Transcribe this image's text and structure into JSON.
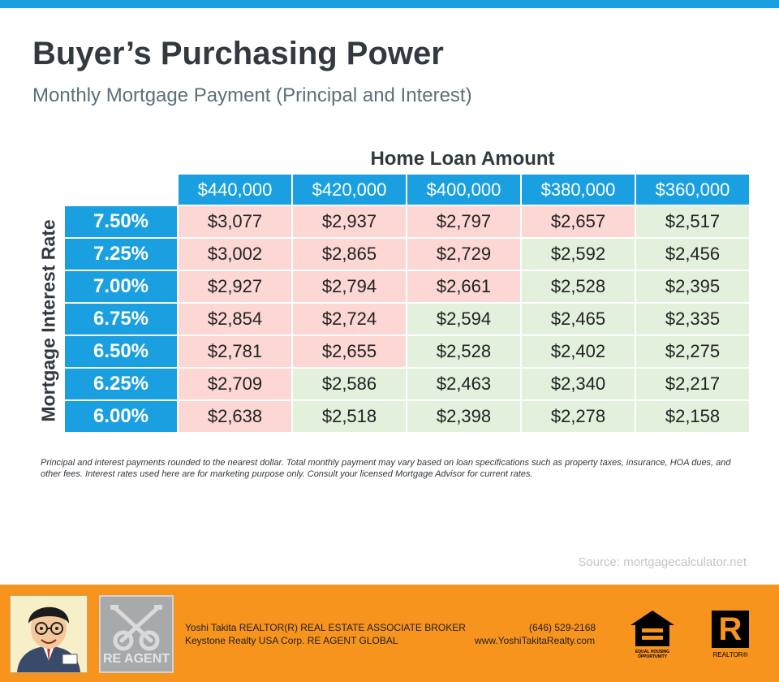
{
  "header": {
    "title": "Buyer’s Purchasing Power",
    "subtitle": "Monthly Mortgage Payment (Principal and Interest)"
  },
  "table": {
    "column_group_label": "Home Loan Amount",
    "row_group_label": "Mortgage  Interest Rate",
    "columns": [
      "$440,000",
      "$420,000",
      "$400,000",
      "$380,000",
      "$360,000"
    ],
    "rows": [
      {
        "rate": "7.50%",
        "values": [
          "$3,077",
          "$2,937",
          "$2,797",
          "$2,657",
          "$2,517"
        ],
        "shades": [
          "pink",
          "pink",
          "pink",
          "pink",
          "green"
        ]
      },
      {
        "rate": "7.25%",
        "values": [
          "$3,002",
          "$2,865",
          "$2,729",
          "$2,592",
          "$2,456"
        ],
        "shades": [
          "pink",
          "pink",
          "pink",
          "green",
          "green"
        ]
      },
      {
        "rate": "7.00%",
        "values": [
          "$2,927",
          "$2,794",
          "$2,661",
          "$2,528",
          "$2,395"
        ],
        "shades": [
          "pink",
          "pink",
          "pink",
          "green",
          "green"
        ]
      },
      {
        "rate": "6.75%",
        "values": [
          "$2,854",
          "$2,724",
          "$2,594",
          "$2,465",
          "$2,335"
        ],
        "shades": [
          "pink",
          "pink",
          "green",
          "green",
          "green"
        ]
      },
      {
        "rate": "6.50%",
        "values": [
          "$2,781",
          "$2,655",
          "$2,528",
          "$2,402",
          "$2,275"
        ],
        "shades": [
          "pink",
          "pink",
          "green",
          "green",
          "green"
        ]
      },
      {
        "rate": "6.25%",
        "values": [
          "$2,709",
          "$2,586",
          "$2,463",
          "$2,340",
          "$2,217"
        ],
        "shades": [
          "pink",
          "green",
          "green",
          "green",
          "green"
        ]
      },
      {
        "rate": "6.00%",
        "values": [
          "$2,638",
          "$2,518",
          "$2,398",
          "$2,278",
          "$2,158"
        ],
        "shades": [
          "pink",
          "green",
          "green",
          "green",
          "green"
        ]
      }
    ]
  },
  "disclaimer": "Principal and interest payments rounded to the nearest dollar. Total monthly payment may vary based on loan specifications such as property taxes, insurance, HOA dues, and other fees. Interest rates used here are for marketing purpose only. Consult your licensed Mortgage Advisor for current rates.",
  "source": "Source: mortgagecalculator.net",
  "footer": {
    "agent_line": "Yoshi Takita REALTOR(R) REAL ESTATE ASSOCIATE BROKER",
    "company_line": "Keystone Realty USA Corp.  RE AGENT GLOBAL",
    "phone": "(646) 529-2168",
    "website": "www.YoshiTakitaRealty.com",
    "reagent_logo_text": "RE AGENT",
    "eho_text": "EQUAL HOUSING OPPORTUNITY",
    "realtor_logo_letter": "R",
    "realtor_text": "REALTOR®"
  },
  "colors": {
    "accent": "#1aa0e0",
    "footer": "#f7941e",
    "above_cell": "#fcd7d3",
    "below_cell": "#e2f0dc"
  }
}
